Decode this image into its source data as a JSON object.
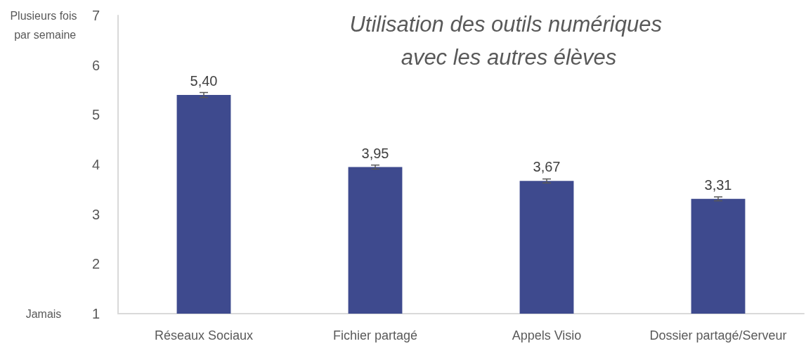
{
  "chart_data": {
    "type": "bar",
    "title": "Utilisation des outils numériques avec les autres élèves",
    "categories": [
      "Réseaux Sociaux",
      "Fichier partagé",
      "Appels Visio",
      "Dossier partagé/Serveur"
    ],
    "values": [
      5.4,
      3.95,
      3.67,
      3.31
    ],
    "errors": [
      0.05,
      0.04,
      0.04,
      0.04
    ],
    "value_labels": [
      "5,40",
      "3,95",
      "3,67",
      "3,31"
    ],
    "color": "#3e4a8e",
    "ylim": [
      1,
      7
    ],
    "yticks": [
      1,
      2,
      3,
      4,
      5,
      6,
      7
    ],
    "annotations": [
      "Plusieurs fois par semaine",
      "Jamais"
    ]
  }
}
